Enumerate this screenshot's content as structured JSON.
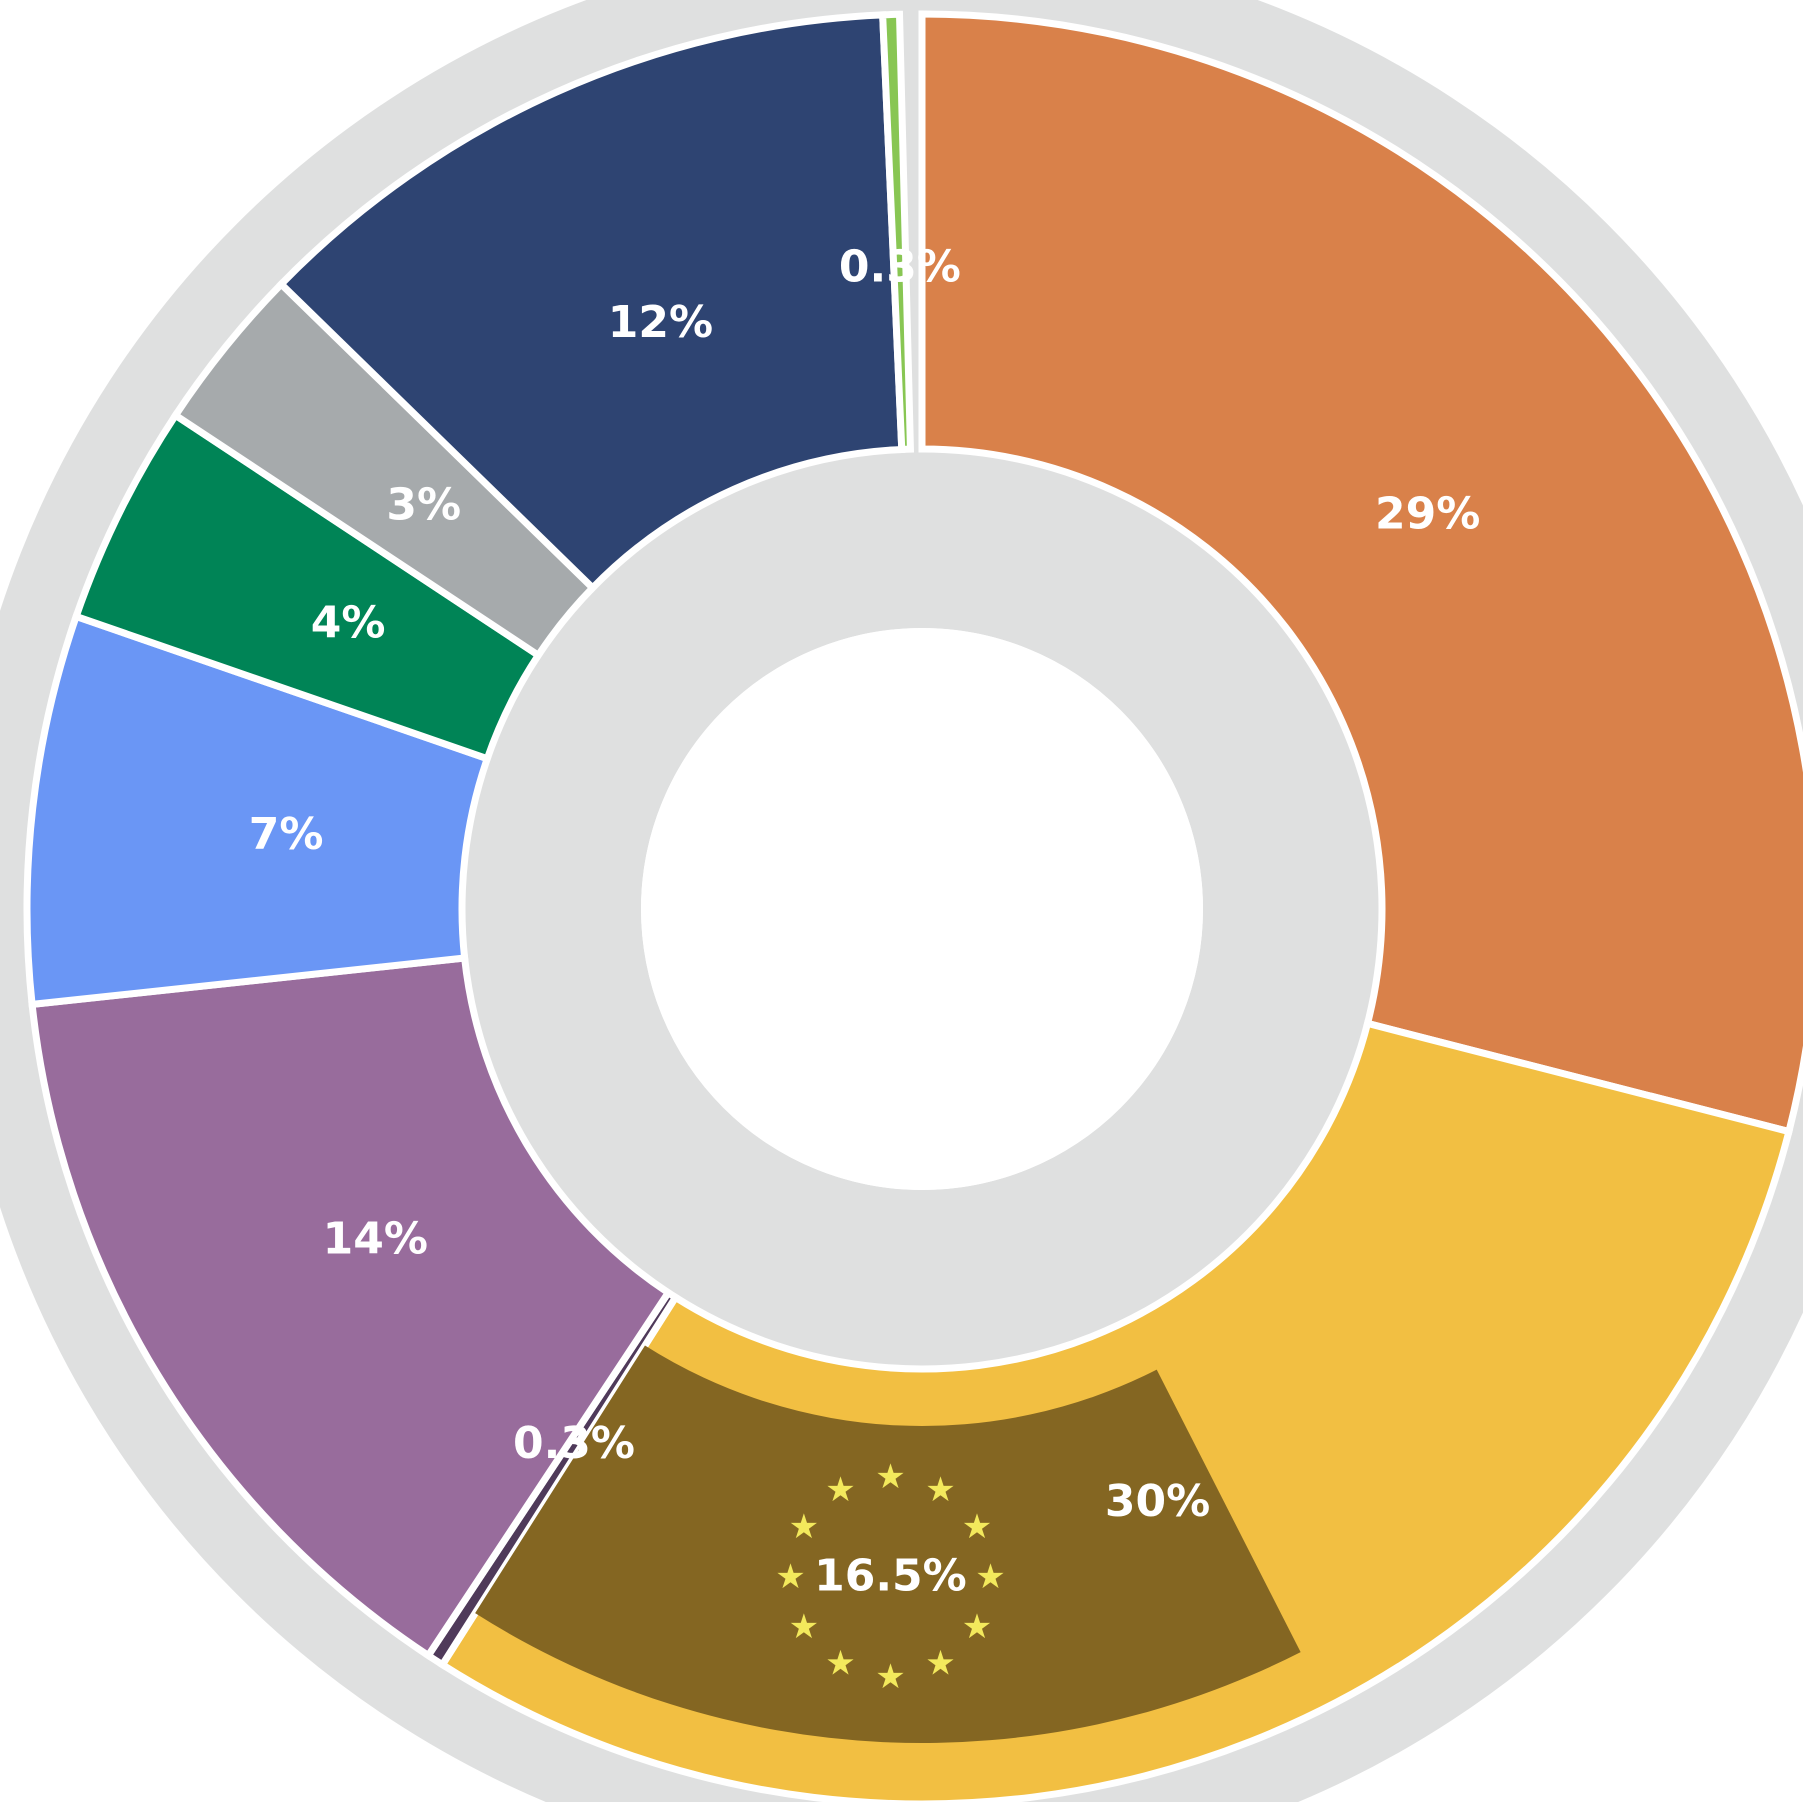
{
  "chart_data": {
    "type": "donut",
    "values": [
      29,
      30,
      0.3,
      14,
      7,
      4,
      3,
      12,
      0.3
    ],
    "value_labels": [
      "29%",
      "30%",
      "0.3%",
      "14%",
      "7%",
      "4%",
      "3%",
      "12%",
      "0.3%"
    ],
    "colors": [
      "#d9814a",
      "#f2bf42",
      "#4f3a5a",
      "#986c9c",
      "#6a96f5",
      "#008456",
      "#a6aaac",
      "#2e4472",
      "#88c653"
    ],
    "highlight": {
      "value": 16.5,
      "label": "16.5%",
      "color": "#846622",
      "within": 1
    }
  }
}
